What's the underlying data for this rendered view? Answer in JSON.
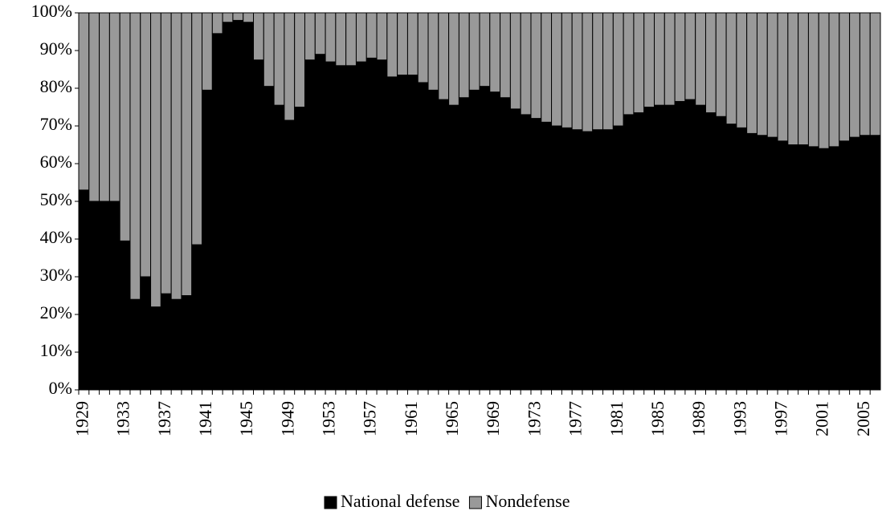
{
  "chart_data": {
    "type": "stacked_bar_percent",
    "categories": [
      "1929",
      null,
      null,
      null,
      "1933",
      null,
      null,
      null,
      "1937",
      null,
      null,
      null,
      "1941",
      null,
      null,
      null,
      "1945",
      null,
      null,
      null,
      "1949",
      null,
      null,
      null,
      "1953",
      null,
      null,
      null,
      "1957",
      null,
      null,
      null,
      "1961",
      null,
      null,
      null,
      "1965",
      null,
      null,
      null,
      "1969",
      null,
      null,
      null,
      "1973",
      null,
      null,
      null,
      "1977",
      null,
      null,
      null,
      "1981",
      null,
      null,
      null,
      "1985",
      null,
      null,
      null,
      "1989",
      null,
      null,
      null,
      "1993",
      null,
      null,
      null,
      "1997",
      null,
      null,
      null,
      "2001",
      null,
      null,
      null,
      "2005",
      null
    ],
    "series": [
      {
        "name": "National defense",
        "color": "#000000",
        "values": [
          53,
          50,
          50,
          50,
          39.5,
          24,
          30,
          22,
          25.5,
          24,
          25,
          38.5,
          79.5,
          94.5,
          97.5,
          98,
          97.5,
          87.5,
          80.5,
          75.5,
          71.5,
          75,
          87.5,
          89,
          87,
          86,
          86,
          87,
          88,
          87.5,
          83,
          83.5,
          83.5,
          81.5,
          79.5,
          77,
          75.5,
          77.5,
          79.5,
          80.5,
          79,
          77.5,
          74.5,
          73,
          72,
          71,
          70,
          69.5,
          69,
          68.5,
          69,
          69,
          70,
          73,
          73.5,
          75,
          75.5,
          75.5,
          76.5,
          77,
          75.5,
          73.5,
          72.5,
          70.5,
          69.5,
          68,
          67.5,
          67,
          66,
          65,
          65,
          64.5,
          64,
          64.5,
          66,
          67,
          67.5,
          67.5
        ]
      },
      {
        "name": "Nondefense",
        "color": "#999999",
        "values": [
          47,
          50,
          50,
          50,
          60.5,
          76,
          70,
          78,
          74.5,
          76,
          75,
          61.5,
          20.5,
          5.5,
          2.5,
          2,
          2.5,
          12.5,
          19.5,
          24.5,
          28.5,
          25,
          12.5,
          11,
          13,
          14,
          14,
          13,
          12,
          12.5,
          17,
          16.5,
          16.5,
          18.5,
          20.5,
          23,
          24.5,
          22.5,
          20.5,
          19.5,
          21,
          22.5,
          25.5,
          27,
          28,
          29,
          30,
          30.5,
          31,
          31.5,
          31,
          31,
          30,
          27,
          26.5,
          25,
          24.5,
          24.5,
          23.5,
          23,
          24.5,
          26.5,
          27.5,
          29.5,
          30.5,
          32,
          32.5,
          33,
          34,
          35,
          35,
          35.5,
          36,
          35.5,
          34,
          33,
          32.5,
          32.5
        ]
      }
    ],
    "ylim": [
      0,
      100
    ],
    "yticks": [
      {
        "value": 0,
        "label": "0%"
      },
      {
        "value": 10,
        "label": "10%"
      },
      {
        "value": 20,
        "label": "20%"
      },
      {
        "value": 30,
        "label": "30%"
      },
      {
        "value": 40,
        "label": "40%"
      },
      {
        "value": 50,
        "label": "50%"
      },
      {
        "value": 60,
        "label": "60%"
      },
      {
        "value": 70,
        "label": "70%"
      },
      {
        "value": 80,
        "label": "80%"
      },
      {
        "value": 90,
        "label": "90%"
      },
      {
        "value": 100,
        "label": "100%"
      }
    ],
    "legend": "bottom"
  }
}
